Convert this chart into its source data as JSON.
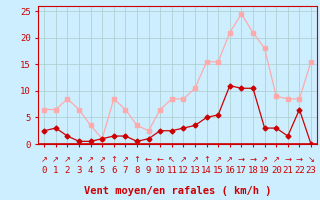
{
  "hours": [
    0,
    1,
    2,
    3,
    4,
    5,
    6,
    7,
    8,
    9,
    10,
    11,
    12,
    13,
    14,
    15,
    16,
    17,
    18,
    19,
    20,
    21,
    22,
    23
  ],
  "wind_avg": [
    2.5,
    3.0,
    1.5,
    0.5,
    0.5,
    1.0,
    1.5,
    1.5,
    0.5,
    1.0,
    2.5,
    2.5,
    3.0,
    3.5,
    5.0,
    5.5,
    11.0,
    10.5,
    10.5,
    3.0,
    3.0,
    1.5,
    6.5,
    0
  ],
  "wind_gust": [
    6.5,
    6.5,
    8.5,
    6.5,
    3.5,
    1.0,
    8.5,
    6.5,
    3.5,
    2.5,
    6.5,
    8.5,
    8.5,
    10.5,
    15.5,
    15.5,
    21.0,
    24.5,
    21.0,
    18.0,
    9.0,
    8.5,
    8.5,
    15.5
  ],
  "color_avg": "#cc0000",
  "color_gust": "#ffaaaa",
  "bg_color": "#cceeff",
  "grid_color": "#aacccc",
  "axis_color": "#cc0000",
  "xlabel": "Vent moyen/en rafales ( km/h )",
  "ylim": [
    0,
    26
  ],
  "yticks": [
    0,
    5,
    10,
    15,
    20,
    25
  ],
  "arrows": [
    "↗",
    "↗",
    "↗",
    "↗",
    "↗",
    "↗",
    "↑",
    "↗",
    "↑",
    "←",
    "←",
    "↖",
    "↗",
    "↗",
    "↑",
    "↗",
    "↗",
    "→",
    "→",
    "↗",
    "↗",
    "→",
    "→",
    "↘"
  ],
  "tick_fontsize": 6.5,
  "label_fontsize": 7.5
}
